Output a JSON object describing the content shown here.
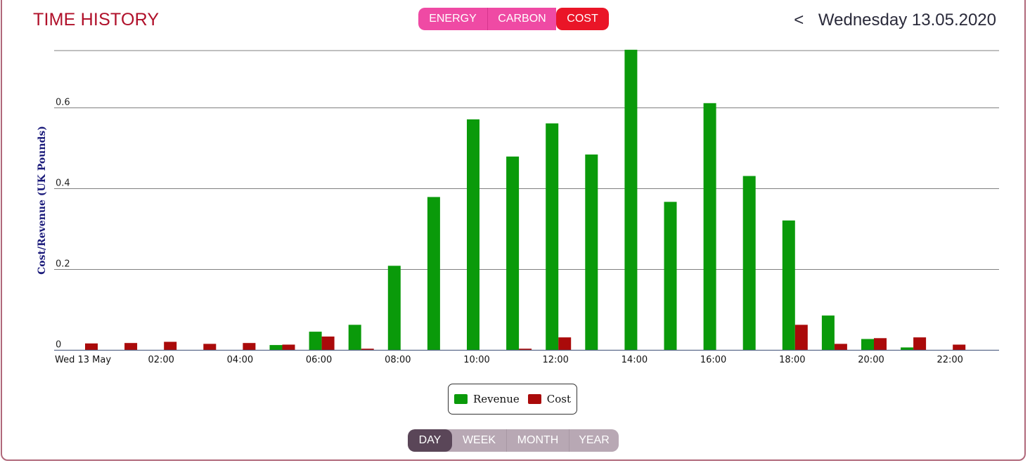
{
  "header": {
    "title": "TIME HISTORY",
    "date_prev": "<",
    "date_label": "Wednesday 13.05.2020"
  },
  "mode_tabs": [
    {
      "label": "ENERGY",
      "active": false
    },
    {
      "label": "CARBON",
      "active": false
    },
    {
      "label": "COST",
      "active": true
    }
  ],
  "period_tabs": [
    {
      "label": "DAY",
      "active": true
    },
    {
      "label": "WEEK",
      "active": false
    },
    {
      "label": "MONTH",
      "active": false
    },
    {
      "label": "YEAR",
      "active": false
    }
  ],
  "colors": {
    "revenue": "#0a9a0a",
    "cost": "#aa0a0a",
    "axis_label": "#1a1a7a",
    "grid": "#808080",
    "accent": "#b0102a"
  },
  "chart_data": {
    "type": "bar",
    "ylabel": "Cost/Revenue (UK Pounds)",
    "ylim": [
      0,
      0.74
    ],
    "yticks": [
      0,
      0.2,
      0.4,
      0.6
    ],
    "ytick_labels": [
      "0",
      "0.2",
      "0.4",
      "0.6"
    ],
    "x_start_label": "Wed 13 May",
    "xtick_labels": [
      "Wed 13 May",
      "02:00",
      "04:00",
      "06:00",
      "08:00",
      "10:00",
      "12:00",
      "14:00",
      "16:00",
      "18:00",
      "20:00",
      "22:00"
    ],
    "categories": [
      "00:00",
      "01:00",
      "02:00",
      "03:00",
      "04:00",
      "05:00",
      "06:00",
      "07:00",
      "08:00",
      "09:00",
      "10:00",
      "11:00",
      "12:00",
      "13:00",
      "14:00",
      "15:00",
      "16:00",
      "17:00",
      "18:00",
      "19:00",
      "20:00",
      "21:00",
      "22:00",
      "23:00"
    ],
    "grid": true,
    "legend_position": "bottom-center",
    "series": [
      {
        "name": "Revenue",
        "values": [
          0,
          0,
          0,
          0,
          0,
          0.012,
          0.045,
          0.062,
          0.208,
          0.378,
          0.57,
          0.478,
          0.56,
          0.483,
          0.742,
          0.366,
          0.61,
          0.43,
          0.32,
          0.085,
          0.027,
          0.006,
          0,
          0
        ]
      },
      {
        "name": "Cost",
        "values": [
          0.016,
          0.017,
          0.02,
          0.015,
          0.017,
          0.013,
          0.033,
          0.003,
          0,
          0,
          0,
          0.003,
          0.031,
          0,
          0,
          0,
          0,
          0,
          0.062,
          0.015,
          0.029,
          0.031,
          0.013,
          0
        ]
      }
    ]
  }
}
